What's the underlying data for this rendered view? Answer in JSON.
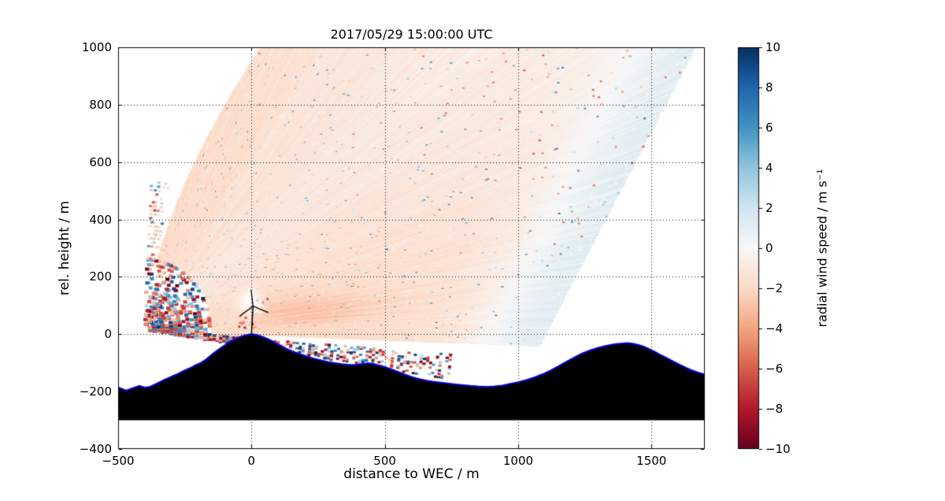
{
  "chart_data": {
    "type": "heatmap",
    "title": "2017/05/29 15:00:00 UTC",
    "xlabel": "distance to WEC / m",
    "ylabel": "rel. height / m",
    "xlim": [
      -500,
      1700
    ],
    "ylim": [
      -400,
      1000
    ],
    "xticks": [
      -500,
      0,
      500,
      1000,
      1500
    ],
    "yticks": [
      -400,
      -200,
      0,
      200,
      400,
      600,
      800,
      1000
    ],
    "grid": {
      "style": "dotted",
      "x_lines": [
        0,
        500,
        1000,
        1500
      ],
      "y_lines": [
        -200,
        0,
        200,
        400,
        600,
        800
      ]
    },
    "colorbar": {
      "label": "radial wind speed / m s⁻¹",
      "ticks": [
        10,
        8,
        6,
        4,
        2,
        0,
        -2,
        -4,
        -6,
        -8,
        -10
      ],
      "vmin": -10,
      "vmax": 10,
      "colormap": "RdBu",
      "colormap_stops": [
        "#67001f",
        "#b2182b",
        "#d6604d",
        "#f4a582",
        "#fddbc7",
        "#f7f7f7",
        "#d1e5f0",
        "#92c5de",
        "#4393c3",
        "#2166ac",
        "#053061"
      ]
    },
    "scan": {
      "origin": [
        -400,
        15
      ],
      "elevation_deg": [
        -8.5,
        88
      ],
      "beam_step_deg": 0.2,
      "range_step": 8,
      "range_max": 2400,
      "clutter_range": 255,
      "right_edge_line": [
        [
          1030,
          -130
        ],
        [
          1660,
          990
        ]
      ],
      "blue_band_width": 240,
      "blue_value": 1.35,
      "pink_value": -1.45,
      "steep_limit_deg": 66,
      "steep_limit_range": 1080
    },
    "turbine": {
      "x": 0,
      "base_y": 0,
      "hub_y": 98,
      "blade_len": 58
    },
    "terrain": {
      "fill": "#000000",
      "edge_color": "#0000dd",
      "base_y": -300,
      "points": [
        [
          -500,
          -185
        ],
        [
          -470,
          -196
        ],
        [
          -445,
          -188
        ],
        [
          -420,
          -180
        ],
        [
          -400,
          -186
        ],
        [
          -380,
          -183
        ],
        [
          -355,
          -172
        ],
        [
          -330,
          -160
        ],
        [
          -305,
          -150
        ],
        [
          -280,
          -140
        ],
        [
          -255,
          -128
        ],
        [
          -230,
          -118
        ],
        [
          -210,
          -108
        ],
        [
          -190,
          -100
        ],
        [
          -170,
          -88
        ],
        [
          -150,
          -72
        ],
        [
          -130,
          -58
        ],
        [
          -110,
          -45
        ],
        [
          -90,
          -32
        ],
        [
          -70,
          -20
        ],
        [
          -50,
          -12
        ],
        [
          -30,
          -5
        ],
        [
          -10,
          -1
        ],
        [
          5,
          0
        ],
        [
          25,
          -4
        ],
        [
          45,
          -10
        ],
        [
          65,
          -18
        ],
        [
          85,
          -28
        ],
        [
          105,
          -38
        ],
        [
          125,
          -48
        ],
        [
          145,
          -57
        ],
        [
          165,
          -64
        ],
        [
          190,
          -72
        ],
        [
          215,
          -80
        ],
        [
          240,
          -86
        ],
        [
          265,
          -92
        ],
        [
          290,
          -97
        ],
        [
          315,
          -101
        ],
        [
          340,
          -104
        ],
        [
          365,
          -106
        ],
        [
          390,
          -107
        ],
        [
          415,
          -104
        ],
        [
          435,
          -101
        ],
        [
          455,
          -103
        ],
        [
          480,
          -109
        ],
        [
          505,
          -116
        ],
        [
          530,
          -124
        ],
        [
          555,
          -133
        ],
        [
          580,
          -142
        ],
        [
          605,
          -150
        ],
        [
          630,
          -156
        ],
        [
          655,
          -161
        ],
        [
          680,
          -165
        ],
        [
          705,
          -168
        ],
        [
          730,
          -171
        ],
        [
          760,
          -174
        ],
        [
          790,
          -177
        ],
        [
          820,
          -180
        ],
        [
          850,
          -182
        ],
        [
          880,
          -183
        ],
        [
          910,
          -182
        ],
        [
          940,
          -179
        ],
        [
          970,
          -173
        ],
        [
          1000,
          -167
        ],
        [
          1030,
          -160
        ],
        [
          1060,
          -151
        ],
        [
          1090,
          -140
        ],
        [
          1120,
          -127
        ],
        [
          1150,
          -112
        ],
        [
          1180,
          -96
        ],
        [
          1210,
          -81
        ],
        [
          1240,
          -67
        ],
        [
          1270,
          -56
        ],
        [
          1300,
          -47
        ],
        [
          1330,
          -40
        ],
        [
          1360,
          -35
        ],
        [
          1390,
          -32
        ],
        [
          1410,
          -31
        ],
        [
          1430,
          -33
        ],
        [
          1450,
          -37
        ],
        [
          1470,
          -43
        ],
        [
          1490,
          -51
        ],
        [
          1510,
          -60
        ],
        [
          1530,
          -70
        ],
        [
          1555,
          -82
        ],
        [
          1580,
          -94
        ],
        [
          1605,
          -106
        ],
        [
          1630,
          -117
        ],
        [
          1655,
          -127
        ],
        [
          1680,
          -135
        ],
        [
          1700,
          -140
        ]
      ]
    }
  }
}
